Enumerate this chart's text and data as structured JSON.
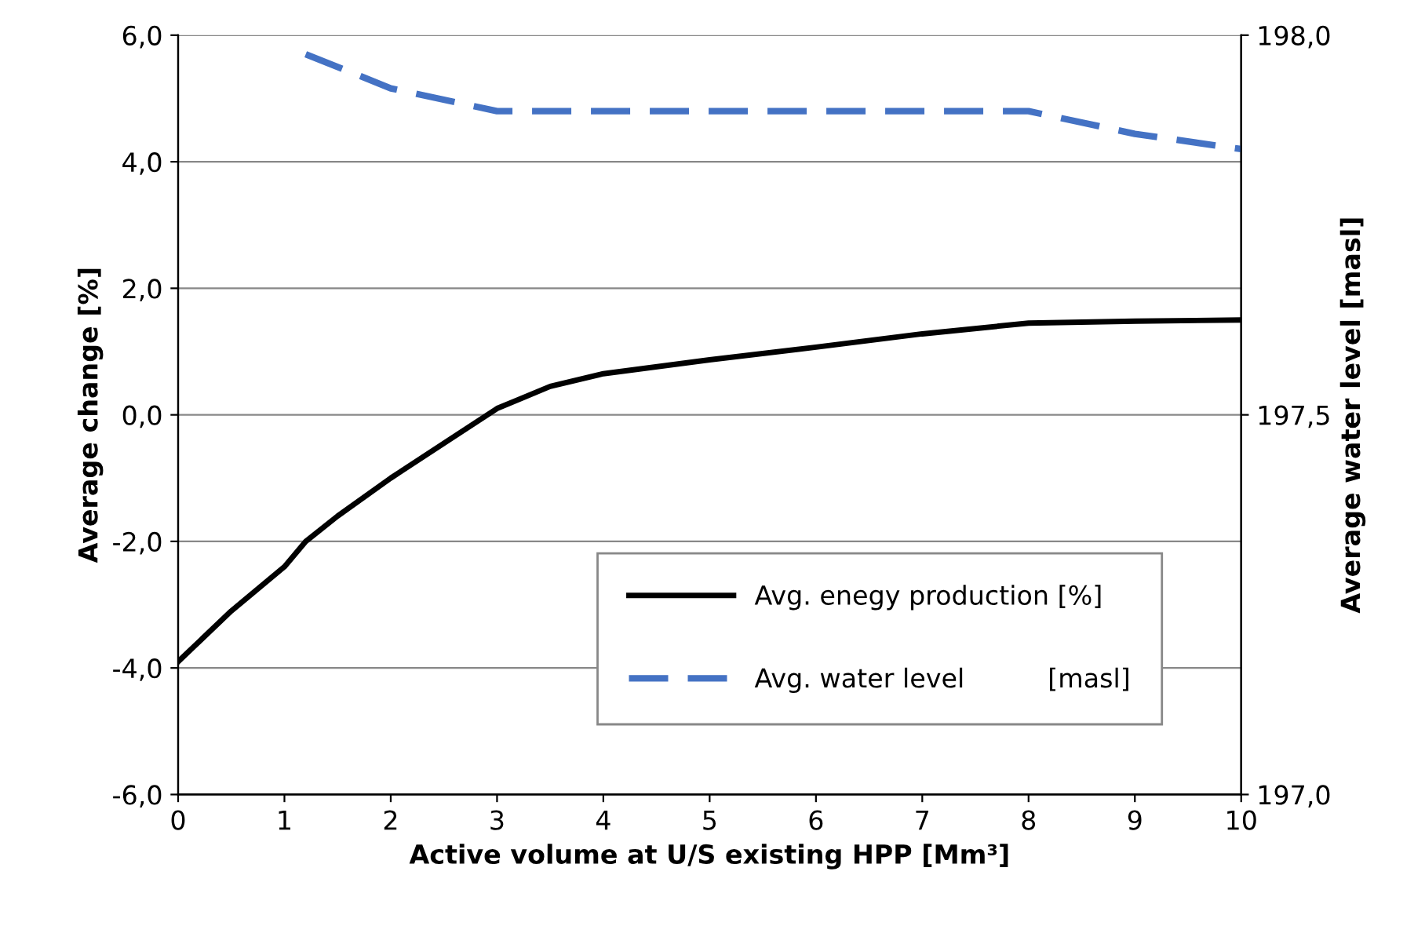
{
  "chart_data": {
    "type": "line",
    "xlabel": "Active volume at U/S existing HPP [Mm³]",
    "ylabel": "Average change [%]",
    "y2label": "Average water level [masl]",
    "xlim": [
      0,
      10
    ],
    "xticks": [
      0,
      1,
      2,
      3,
      4,
      5,
      6,
      7,
      8,
      9,
      10
    ],
    "ylim": [
      -6,
      6
    ],
    "yticks": [
      {
        "value": -6,
        "label": "-6,0"
      },
      {
        "value": -4,
        "label": "-4,0"
      },
      {
        "value": -2,
        "label": "-2,0"
      },
      {
        "value": 0,
        "label": "0,0"
      },
      {
        "value": 2,
        "label": "2,0"
      },
      {
        "value": 4,
        "label": "4,0"
      },
      {
        "value": 6,
        "label": "6,0"
      }
    ],
    "y2lim": [
      197.0,
      198.0
    ],
    "y2ticks": [
      {
        "value": 197.0,
        "label": "197,0"
      },
      {
        "value": 197.5,
        "label": "197,5"
      },
      {
        "value": 198.0,
        "label": "198,0"
      }
    ],
    "grid": "y",
    "legend": "bottom right",
    "marker": "none",
    "series": [
      {
        "name": "Avg. enegy production [%]",
        "color": "#000000",
        "line_style": "solid",
        "x": [
          0,
          0.5,
          1,
          1.2,
          1.5,
          2,
          2.5,
          3,
          3.5,
          4,
          5,
          6,
          7,
          8,
          9,
          10
        ],
        "values": [
          -3.9,
          -3.1,
          -2.4,
          -2.0,
          -1.6,
          -1.0,
          -0.45,
          0.1,
          0.45,
          0.65,
          0.87,
          1.07,
          1.28,
          1.45,
          1.48,
          1.5
        ]
      },
      {
        "name": "Avg. water level          [masl]",
        "color": "#4472c4",
        "line_style": "dashed",
        "axis": "y2",
        "x": [
          1.2,
          2,
          3,
          4,
          5,
          6,
          7,
          8,
          9,
          10
        ],
        "values": [
          197.975,
          197.93,
          197.9,
          197.9,
          197.9,
          197.9,
          197.9,
          197.9,
          197.87,
          197.85
        ]
      }
    ]
  }
}
